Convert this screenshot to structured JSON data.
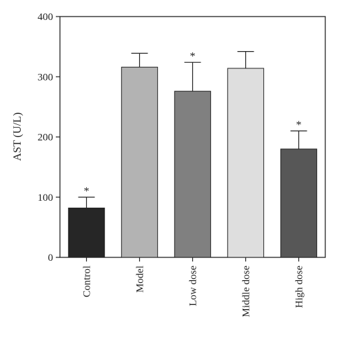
{
  "chart_data": {
    "type": "bar",
    "title": "",
    "xlabel": "",
    "ylabel": "AST (U/L)",
    "ylim": [
      0,
      400
    ],
    "yticks": [
      0,
      100,
      200,
      300,
      400
    ],
    "categories": [
      "Control",
      "Model",
      "Low dose",
      "Middle dose",
      "High dose"
    ],
    "values": [
      82,
      316,
      276,
      314,
      180
    ],
    "errors": [
      18,
      23,
      48,
      28,
      30
    ],
    "annotations": [
      "*",
      "",
      "*",
      "",
      "*"
    ],
    "colors": [
      "#262626",
      "#b3b3b3",
      "#808080",
      "#dedede",
      "#575757"
    ],
    "grid": false
  }
}
